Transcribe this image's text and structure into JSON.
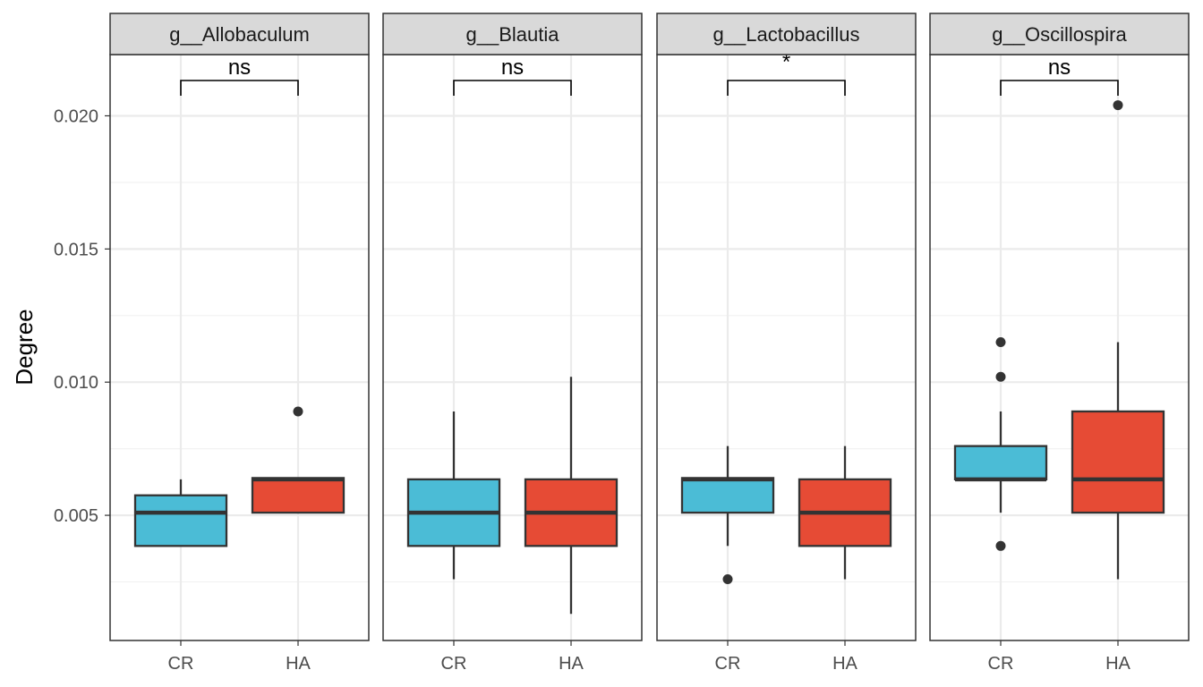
{
  "chart_data": {
    "type": "boxplot",
    "ylabel": "Degree",
    "xlabel": "",
    "ylim": [
      0.0003,
      0.0223
    ],
    "y_ticks": [
      0.005,
      0.01,
      0.015,
      0.02
    ],
    "y_tick_labels": [
      "0.005",
      "0.010",
      "0.015",
      "0.020"
    ],
    "y_minor_ticks": [
      0.0025,
      0.0075,
      0.0125,
      0.0175
    ],
    "grid": true,
    "categories": [
      "CR",
      "HA"
    ],
    "colors": {
      "CR": "#4bbcd6",
      "HA": "#e64b35"
    },
    "panels": [
      {
        "title": "g__Allobaculum",
        "significance": "ns",
        "groups": [
          {
            "group": "CR",
            "whisker_low": 0.00385,
            "q1": 0.00385,
            "median": 0.0051,
            "q3": 0.00575,
            "whisker_high": 0.00635,
            "outliers": []
          },
          {
            "group": "HA",
            "whisker_low": 0.0051,
            "q1": 0.0051,
            "median": 0.00635,
            "q3": 0.0064,
            "whisker_high": 0.0064,
            "outliers": [
              0.0089
            ]
          }
        ]
      },
      {
        "title": "g__Blautia",
        "significance": "ns",
        "groups": [
          {
            "group": "CR",
            "whisker_low": 0.0026,
            "q1": 0.00385,
            "median": 0.0051,
            "q3": 0.00635,
            "whisker_high": 0.0089,
            "outliers": []
          },
          {
            "group": "HA",
            "whisker_low": 0.0013,
            "q1": 0.00385,
            "median": 0.0051,
            "q3": 0.00635,
            "whisker_high": 0.0102,
            "outliers": []
          }
        ]
      },
      {
        "title": "g__Lactobacillus",
        "significance": "*",
        "groups": [
          {
            "group": "CR",
            "whisker_low": 0.00385,
            "q1": 0.0051,
            "median": 0.00635,
            "q3": 0.0064,
            "whisker_high": 0.0076,
            "outliers": [
              0.0026
            ]
          },
          {
            "group": "HA",
            "whisker_low": 0.0026,
            "q1": 0.00385,
            "median": 0.0051,
            "q3": 0.00635,
            "whisker_high": 0.0076,
            "outliers": []
          }
        ]
      },
      {
        "title": "g__Oscillospira",
        "significance": "ns",
        "groups": [
          {
            "group": "CR",
            "whisker_low": 0.0051,
            "q1": 0.00635,
            "median": 0.00635,
            "q3": 0.0076,
            "whisker_high": 0.0089,
            "outliers": [
              0.0115,
              0.0102,
              0.00385
            ]
          },
          {
            "group": "HA",
            "whisker_low": 0.0026,
            "q1": 0.0051,
            "median": 0.00635,
            "q3": 0.0089,
            "whisker_high": 0.0115,
            "outliers": [
              0.0204
            ]
          }
        ]
      }
    ]
  }
}
